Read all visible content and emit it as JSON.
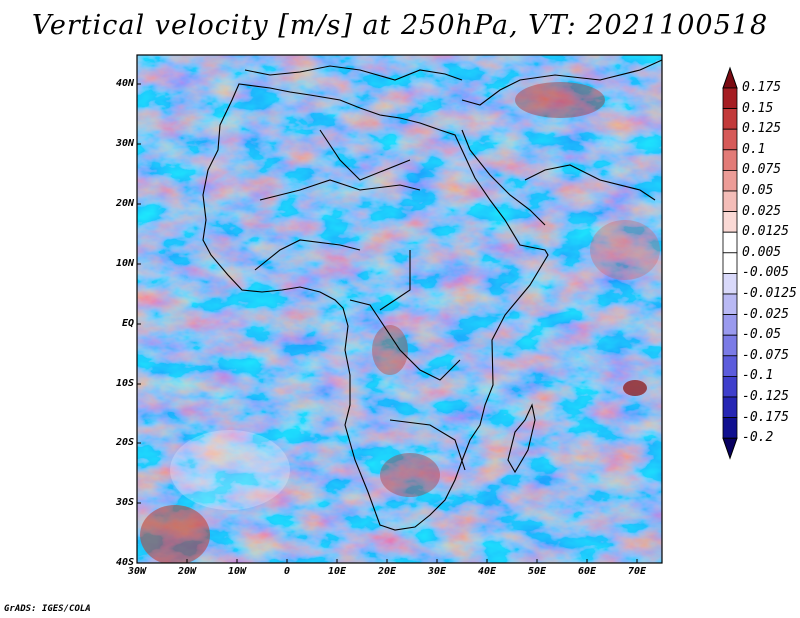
{
  "title": "Vertical velocity [m/s] at 250hPa, VT: 2021100518",
  "footer": "GrADS: IGES/COLA",
  "map": {
    "lon_range": [
      -30,
      75
    ],
    "lat_range": [
      -40,
      45
    ],
    "lat_ticks": [
      "40N",
      "30N",
      "20N",
      "10N",
      "EQ",
      "10S",
      "20S",
      "30S",
      "40S"
    ],
    "lon_ticks": [
      "30W",
      "20W",
      "10W",
      "0",
      "10E",
      "20E",
      "30E",
      "40E",
      "50E",
      "60E",
      "70E"
    ]
  },
  "colorbar": {
    "labels": [
      "0.175",
      "0.15",
      "0.125",
      "0.1",
      "0.075",
      "0.05",
      "0.025",
      "0.0125",
      "0.005",
      "-0.005",
      "-0.0125",
      "-0.025",
      "-0.05",
      "-0.075",
      "-0.1",
      "-0.125",
      "-0.175",
      "-0.2"
    ],
    "colors": [
      "#7a0b12",
      "#a51d22",
      "#c23a3a",
      "#d65a58",
      "#e27b77",
      "#ec9c97",
      "#f4bdb8",
      "#fad9d5",
      "#ffffff",
      "#ffffff",
      "#d9d9fa",
      "#b9b9f4",
      "#9a9aee",
      "#7b7be6",
      "#5c5cdc",
      "#3f3fcc",
      "#2626b4",
      "#101090",
      "#080060"
    ]
  }
}
